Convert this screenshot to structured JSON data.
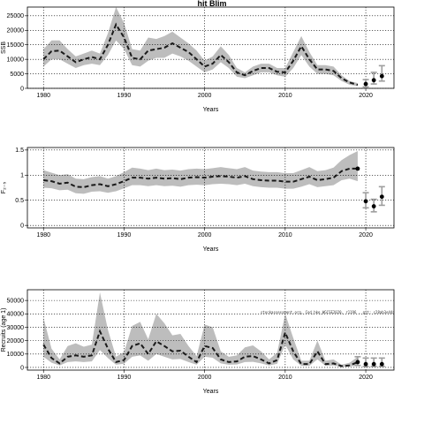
{
  "title": "hit Blim",
  "note": "stockassessment.org, Cod_hke_WGCSE2020, r1196 , git: c28ab3e44a",
  "chart_data": [
    {
      "type": "line",
      "ylabel": "SSB",
      "xlabel": "Years",
      "xlim": [
        1978,
        2023.5
      ],
      "ylim": [
        0,
        28000
      ],
      "xticks": [
        1980,
        1990,
        2000,
        2010,
        2020
      ],
      "yticks": [
        0,
        5000,
        10000,
        15000,
        20000,
        25000
      ],
      "years": [
        1980,
        1981,
        1982,
        1983,
        1984,
        1985,
        1986,
        1987,
        1988,
        1989,
        1990,
        1991,
        1992,
        1993,
        1994,
        1995,
        1996,
        1997,
        1998,
        1999,
        2000,
        2001,
        2002,
        2003,
        2004,
        2005,
        2006,
        2007,
        2008,
        2009,
        2010,
        2011,
        2012,
        2013,
        2014,
        2015,
        2016,
        2017,
        2018,
        2019
      ],
      "series": [
        {
          "role": "estimate",
          "values": [
            10000,
            12800,
            13000,
            11000,
            9000,
            10000,
            10800,
            10000,
            15000,
            22000,
            17500,
            10500,
            10000,
            13000,
            13500,
            14000,
            15500,
            14000,
            12500,
            10000,
            7500,
            8500,
            11500,
            9000,
            5500,
            4500,
            6000,
            7000,
            7000,
            5700,
            5500,
            9500,
            14500,
            10000,
            6500,
            6500,
            6000,
            3500,
            2000,
            1200
          ]
        },
        {
          "role": "upper",
          "values": [
            13500,
            16500,
            16500,
            13500,
            11000,
            12000,
            13000,
            12000,
            19000,
            28000,
            22500,
            13500,
            13000,
            17500,
            17000,
            18000,
            19500,
            17500,
            15500,
            13000,
            9500,
            11000,
            14500,
            11500,
            7000,
            5500,
            7500,
            8500,
            8500,
            7000,
            7000,
            12500,
            18000,
            12500,
            8000,
            8000,
            7500,
            4500,
            2500,
            1800
          ]
        },
        {
          "role": "lower",
          "values": [
            7500,
            10000,
            10000,
            8500,
            7000,
            8000,
            8500,
            8000,
            11500,
            16500,
            13500,
            8000,
            7500,
            9500,
            10500,
            10500,
            12000,
            11000,
            9500,
            7500,
            5500,
            6500,
            9000,
            7000,
            4000,
            3500,
            4500,
            5500,
            5500,
            4500,
            4000,
            7000,
            11500,
            7500,
            5000,
            5000,
            4500,
            2500,
            1200,
            800
          ]
        }
      ],
      "points": [
        {
          "x": 2020,
          "y": 1500
        },
        {
          "x": 2021,
          "y": 2800
        },
        {
          "x": 2022,
          "y": 4200
        }
      ],
      "error_bars": [
        {
          "x": 2020,
          "low": 500,
          "high": 3000
        },
        {
          "x": 2021,
          "low": 1500,
          "high": 5500
        },
        {
          "x": 2022,
          "low": 2500,
          "high": 7800
        }
      ]
    },
    {
      "type": "line",
      "ylabel": "F₂₋₅",
      "xlabel": "Years",
      "xlim": [
        1978,
        2023.5
      ],
      "ylim": [
        -0.05,
        1.55
      ],
      "xticks": [
        1980,
        1990,
        2000,
        2010,
        2020
      ],
      "yticks": [
        0.0,
        0.5,
        1.0,
        1.5
      ],
      "years": [
        1980,
        1981,
        1982,
        1983,
        1984,
        1985,
        1986,
        1987,
        1988,
        1989,
        1990,
        1991,
        1992,
        1993,
        1994,
        1995,
        1996,
        1997,
        1998,
        1999,
        2000,
        2001,
        2002,
        2003,
        2004,
        2005,
        2006,
        2007,
        2008,
        2009,
        2010,
        2011,
        2012,
        2013,
        2014,
        2015,
        2016,
        2017,
        2018,
        2019
      ],
      "series": [
        {
          "role": "estimate",
          "values": [
            0.9,
            0.88,
            0.83,
            0.85,
            0.77,
            0.76,
            0.8,
            0.82,
            0.78,
            0.82,
            0.88,
            0.95,
            0.95,
            0.93,
            0.95,
            0.93,
            0.94,
            0.92,
            0.95,
            0.96,
            0.95,
            0.97,
            0.98,
            0.97,
            0.95,
            0.98,
            0.92,
            0.9,
            0.89,
            0.89,
            0.87,
            0.87,
            0.92,
            0.97,
            0.9,
            0.92,
            0.95,
            1.08,
            1.13,
            1.13
          ]
        },
        {
          "role": "upper",
          "values": [
            1.1,
            1.05,
            1.0,
            1.02,
            0.93,
            0.92,
            0.96,
            0.98,
            0.93,
            0.98,
            1.06,
            1.15,
            1.13,
            1.1,
            1.13,
            1.1,
            1.11,
            1.09,
            1.12,
            1.13,
            1.12,
            1.14,
            1.16,
            1.14,
            1.12,
            1.16,
            1.09,
            1.07,
            1.06,
            1.06,
            1.04,
            1.04,
            1.1,
            1.16,
            1.08,
            1.1,
            1.15,
            1.3,
            1.4,
            1.48
          ]
        },
        {
          "role": "lower",
          "values": [
            0.75,
            0.74,
            0.7,
            0.71,
            0.64,
            0.63,
            0.67,
            0.68,
            0.65,
            0.68,
            0.74,
            0.8,
            0.8,
            0.78,
            0.8,
            0.78,
            0.79,
            0.77,
            0.8,
            0.81,
            0.8,
            0.82,
            0.83,
            0.82,
            0.8,
            0.83,
            0.78,
            0.76,
            0.75,
            0.75,
            0.73,
            0.73,
            0.77,
            0.82,
            0.76,
            0.78,
            0.8,
            0.9,
            0.93,
            0.88
          ]
        }
      ],
      "points": [
        {
          "x": 2019,
          "y": 1.13
        },
        {
          "x": 2020,
          "y": 0.48
        },
        {
          "x": 2021,
          "y": 0.38
        },
        {
          "x": 2022,
          "y": 0.57
        }
      ],
      "error_bars": [
        {
          "x": 2020,
          "low": 0.35,
          "high": 0.65
        },
        {
          "x": 2021,
          "low": 0.27,
          "high": 0.52
        },
        {
          "x": 2022,
          "low": 0.4,
          "high": 0.77
        }
      ]
    },
    {
      "type": "line",
      "ylabel": "Recruits (age 1)",
      "xlabel": "Years",
      "xlim": [
        1978,
        2023.5
      ],
      "ylim": [
        -2000,
        58000
      ],
      "xticks": [
        1980,
        1990,
        2000,
        2010,
        2020
      ],
      "yticks": [
        0,
        10000,
        20000,
        30000,
        40000,
        50000
      ],
      "years": [
        1980,
        1981,
        1982,
        1983,
        1984,
        1985,
        1986,
        1987,
        1988,
        1989,
        1990,
        1991,
        1992,
        1993,
        1994,
        1995,
        1996,
        1997,
        1998,
        1999,
        2000,
        2001,
        2002,
        2003,
        2004,
        2005,
        2006,
        2007,
        2008,
        2009,
        2010,
        2011,
        2012,
        2013,
        2014,
        2015,
        2016,
        2017,
        2018,
        2019
      ],
      "series": [
        {
          "role": "estimate",
          "values": [
            17000,
            7000,
            3000,
            8000,
            9000,
            8000,
            9000,
            27000,
            14000,
            4000,
            5500,
            16000,
            18000,
            10000,
            19500,
            16000,
            12000,
            12500,
            8000,
            4000,
            16000,
            14500,
            6000,
            4000,
            4500,
            8000,
            8500,
            6000,
            3000,
            5500,
            26000,
            12000,
            2500,
            2500,
            12000,
            2500,
            3000,
            1000,
            1500,
            4000
          ]
        },
        {
          "role": "upper",
          "values": [
            37000,
            14000,
            6000,
            16000,
            18000,
            15500,
            17000,
            56000,
            28000,
            8000,
            11500,
            31000,
            34000,
            21000,
            40000,
            33000,
            24000,
            25000,
            16000,
            8500,
            32000,
            30000,
            12000,
            8000,
            9000,
            15000,
            16500,
            12000,
            6000,
            11000,
            40000,
            22000,
            5000,
            5000,
            20000,
            5000,
            6000,
            2000,
            3500,
            8000
          ]
        },
        {
          "role": "lower",
          "values": [
            8000,
            3500,
            1500,
            4000,
            4500,
            4000,
            4500,
            13000,
            7000,
            2000,
            2800,
            8000,
            9000,
            5000,
            10000,
            8000,
            6000,
            6300,
            4000,
            2000,
            8000,
            7200,
            3000,
            2000,
            2200,
            4000,
            4200,
            3000,
            1500,
            2700,
            17000,
            6000,
            1200,
            1200,
            6000,
            1200,
            1500,
            500,
            700,
            1500
          ]
        }
      ],
      "points": [
        {
          "x": 2019,
          "y": 4000
        },
        {
          "x": 2020,
          "y": 2500
        },
        {
          "x": 2021,
          "y": 2500
        },
        {
          "x": 2022,
          "y": 2500
        }
      ],
      "error_bars": [
        {
          "x": 2019,
          "low": 1500,
          "high": 8000
        },
        {
          "x": 2020,
          "low": 800,
          "high": 7000
        },
        {
          "x": 2021,
          "low": 800,
          "high": 7000
        },
        {
          "x": 2022,
          "low": 800,
          "high": 7000
        }
      ]
    }
  ]
}
